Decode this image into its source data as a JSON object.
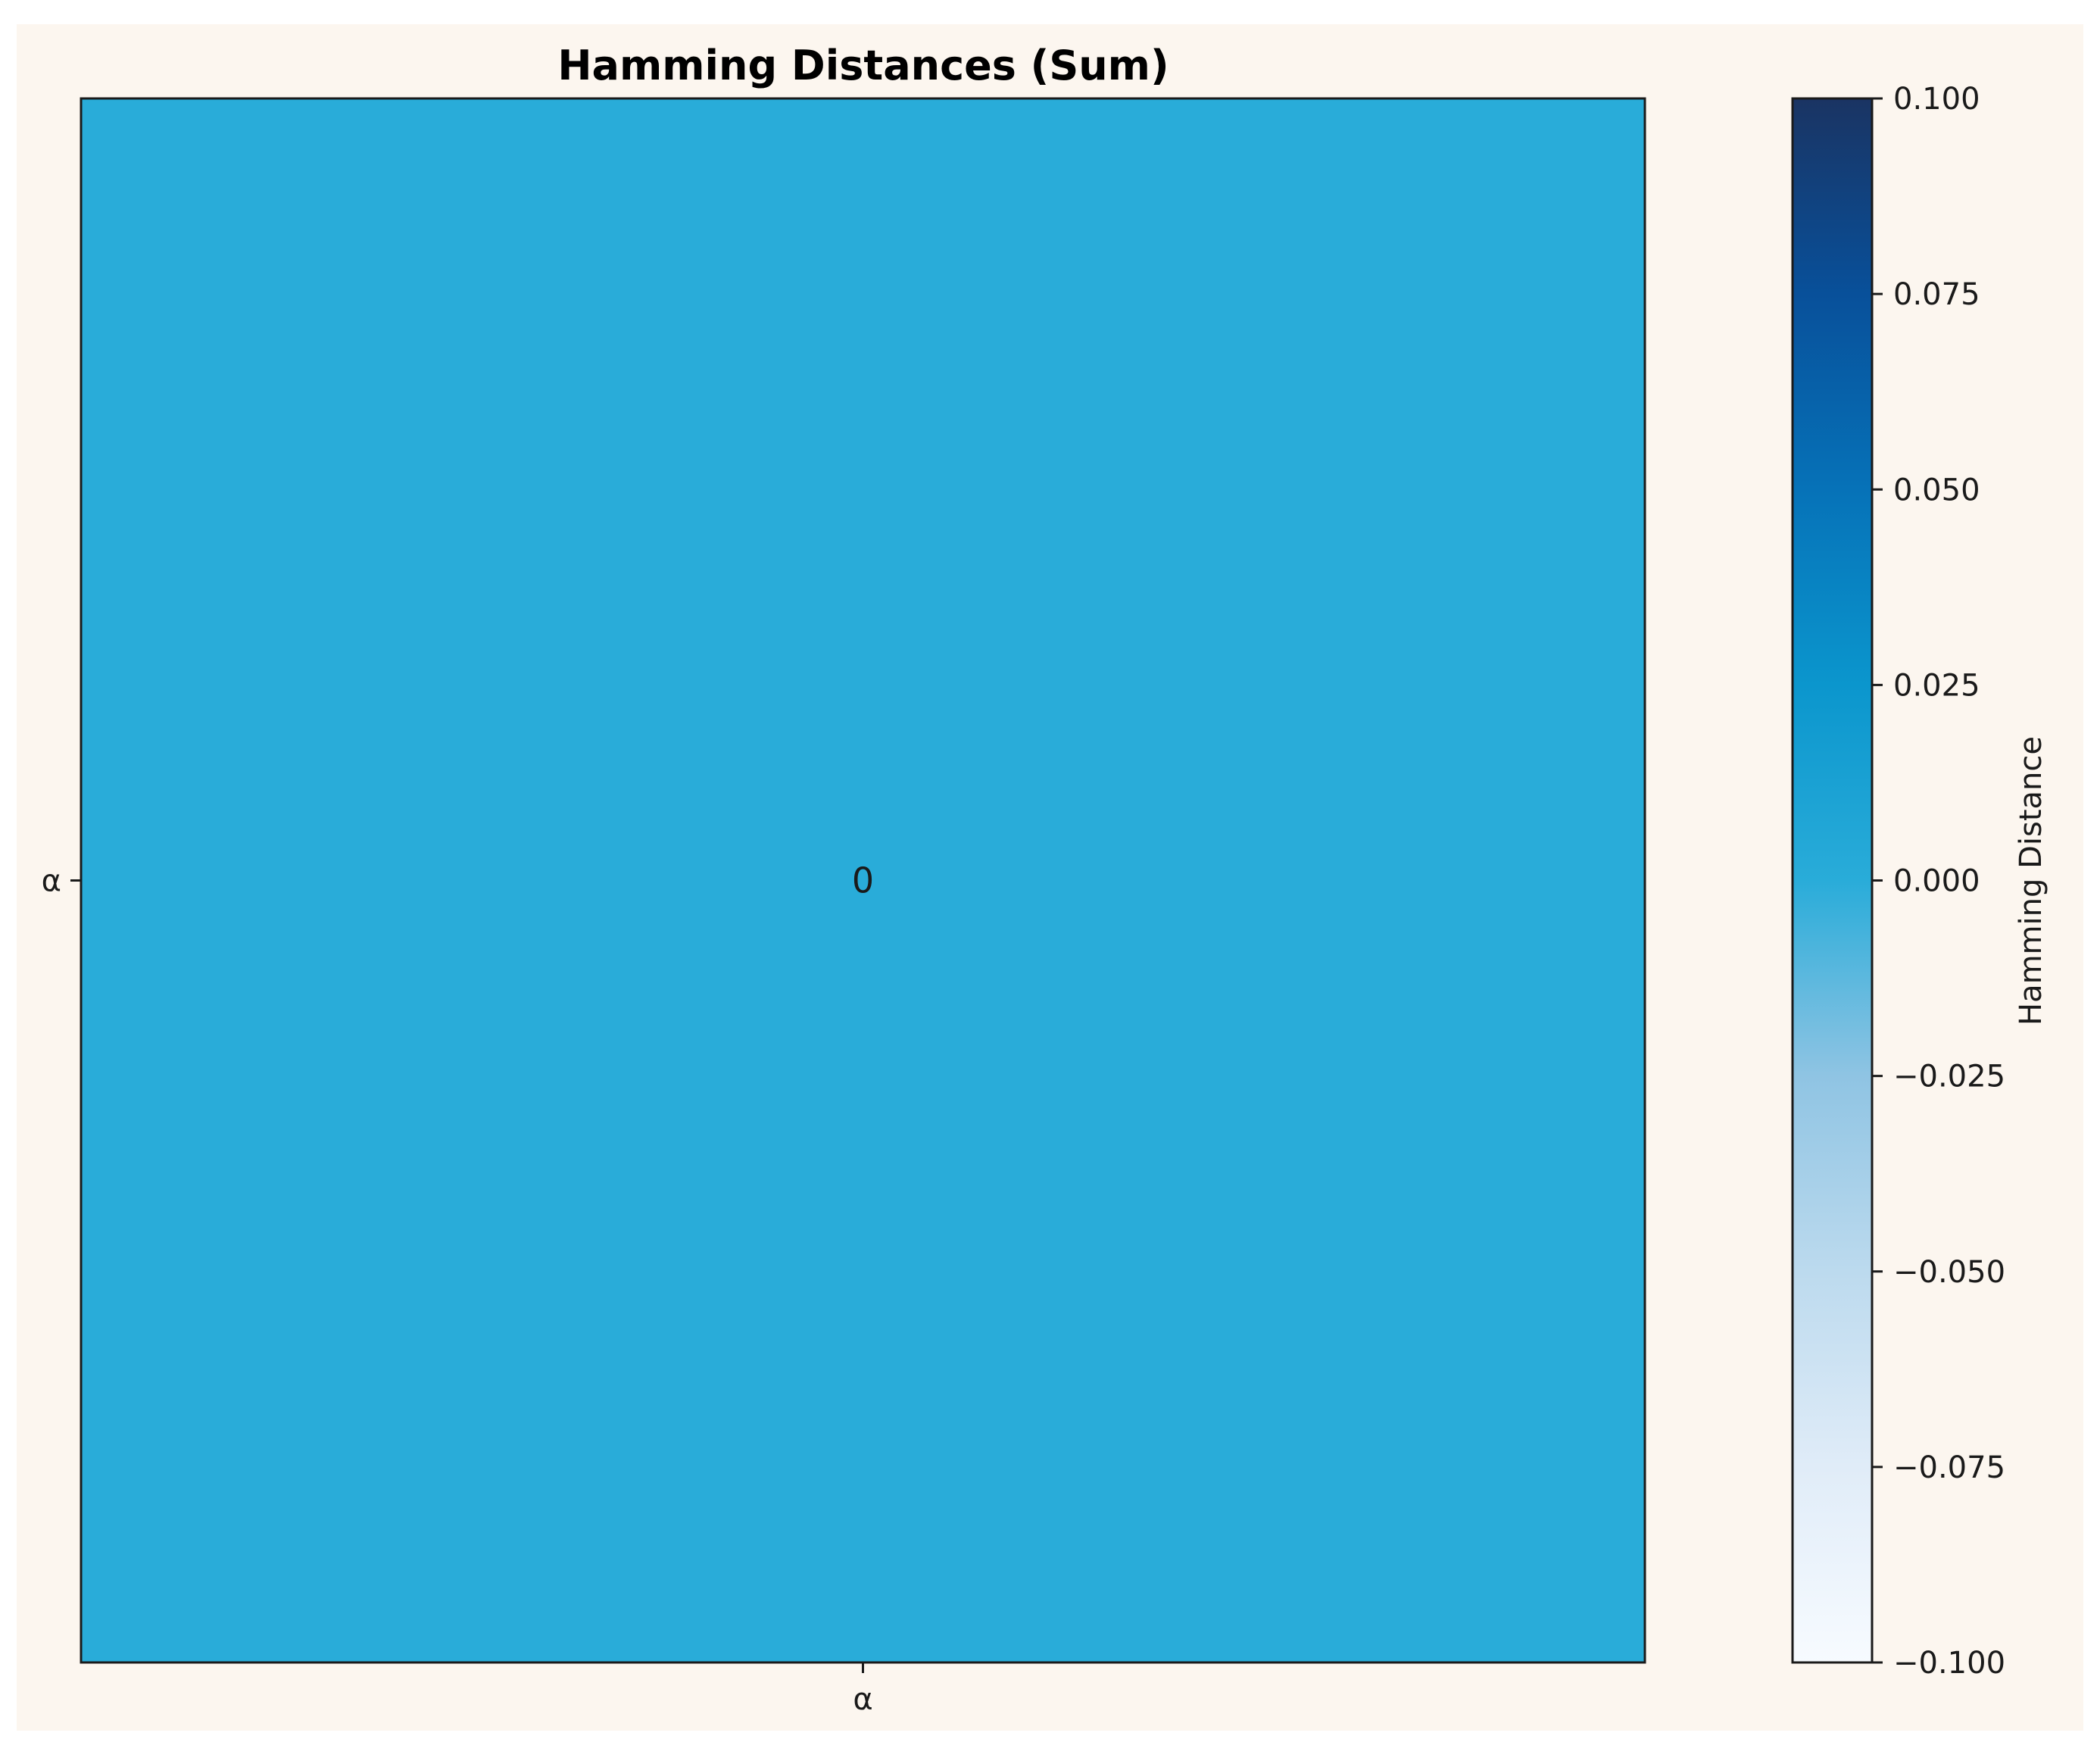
{
  "figure": {
    "background_color": "#ffffff",
    "panel_color": "#fcf6ef"
  },
  "chart_data": {
    "type": "heatmap",
    "title": "Hamming Distances (Sum)",
    "x_categories": [
      "α"
    ],
    "y_categories": [
      "α"
    ],
    "values": [
      [
        0
      ]
    ],
    "cell_labels": [
      [
        "0"
      ]
    ],
    "cell_color": "#29acd9",
    "grid": false,
    "colorbar": {
      "label": "Hamming Distance",
      "range": [
        -0.1,
        0.1
      ],
      "ticks": [
        0.1,
        0.075,
        0.05,
        0.025,
        0.0,
        -0.025,
        -0.05,
        -0.075,
        -0.1
      ],
      "tick_labels": [
        "0.100",
        "0.075",
        "0.050",
        "0.025",
        "0.000",
        "−0.025",
        "−0.050",
        "−0.075",
        "−0.100"
      ],
      "colormap": "Blues",
      "color_stops": [
        {
          "value": -0.1,
          "color": "#f7fbff"
        },
        {
          "value": -0.075,
          "color": "#e0ecf8"
        },
        {
          "value": -0.05,
          "color": "#bcdaee"
        },
        {
          "value": -0.025,
          "color": "#8fc4e3"
        },
        {
          "value": 0.0,
          "color": "#29acd9"
        },
        {
          "value": 0.025,
          "color": "#0b96cd"
        },
        {
          "value": 0.05,
          "color": "#0672b8"
        },
        {
          "value": 0.075,
          "color": "#08509a"
        },
        {
          "value": 0.1,
          "color": "#1a3463"
        }
      ]
    }
  }
}
